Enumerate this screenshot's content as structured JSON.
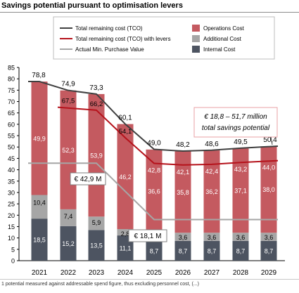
{
  "title": "Savings potential pursuant to optimisation levers",
  "footnote": "1 potential measured against addressable spend figure, thus excluding personnel cost, (...)",
  "colors": {
    "operations": "#c45a60",
    "additional": "#a6a6a6",
    "internal": "#4d5461",
    "tco": "#404040",
    "tco_levers": "#b5121b",
    "actual_min": "#a6a6a6",
    "callout_border": "#e8a0a4"
  },
  "chart_data": {
    "type": "bar",
    "stacked": true,
    "categories": [
      "2021",
      "2022",
      "2023",
      "2024",
      "2025",
      "2026",
      "2027",
      "2028",
      "2029"
    ],
    "ylim": [
      0,
      85
    ],
    "yticks": [
      0,
      5,
      10,
      15,
      20,
      25,
      30,
      35,
      40,
      45,
      50,
      55,
      60,
      65,
      70,
      75,
      80,
      85
    ],
    "xlabel": "",
    "ylabel": "",
    "grid": false,
    "legend_position": "top",
    "series": [
      {
        "name": "Internal Cost",
        "values": [
          18.5,
          15.2,
          13.5,
          11.1,
          8.7,
          8.7,
          8.7,
          8.7,
          8.7
        ],
        "labels": [
          "18,5",
          "15,2",
          "13,5",
          "11,1",
          "8,7",
          "8,7",
          "8,7",
          "8,7",
          "8,7"
        ]
      },
      {
        "name": "Additional Cost",
        "values": [
          10.4,
          7.4,
          5.9,
          2.8,
          3.6,
          3.6,
          3.6,
          3.6,
          3.6
        ],
        "labels": [
          "10,4",
          "7,4",
          "5,9",
          "2,8",
          "3,6",
          "3,6",
          "3,6",
          "3,6",
          "3,6"
        ]
      },
      {
        "name": "Operations Cost",
        "values": [
          49.9,
          52.3,
          53.9,
          46.2,
          36.6,
          35.8,
          36.2,
          37.1,
          38.0
        ],
        "labels": [
          "49,9",
          "52,3",
          "53,9",
          "46,2",
          "36,6",
          "35,8",
          "36,2",
          "37,1",
          "38,0"
        ]
      }
    ],
    "lines": [
      {
        "name": "Total remaining cost (TCO)",
        "values": [
          78.8,
          74.9,
          73.3,
          60.1,
          49.0,
          48.2,
          48.6,
          49.5,
          50.4
        ],
        "labels": [
          "78,8",
          "74,9",
          "73,3",
          "60,1",
          "49,0",
          "48,2",
          "48,6",
          "49,5",
          "50,4"
        ]
      },
      {
        "name": "Total remaining cost (TCO) with levers",
        "values": [
          null,
          67.5,
          66.2,
          54.1,
          42.8,
          42.1,
          42.4,
          43.2,
          44.0
        ],
        "labels": [
          "",
          "67,5",
          "66,2",
          "54,1",
          "42,8",
          "42,1",
          "42,4",
          "43,2",
          "44,0"
        ]
      },
      {
        "name": "Actual Min. Purchase Value",
        "values": [
          42.9,
          42.9,
          42.9,
          30.5,
          18.1,
          18.1,
          18.1,
          18.1,
          18.1
        ]
      }
    ],
    "annotations": [
      {
        "text": "€ 42,9 M"
      },
      {
        "text": "€ 18,1 M"
      },
      {
        "text_line1": "€ 18,8 – 51,7 million",
        "text_line2": "total savings potential"
      }
    ]
  }
}
